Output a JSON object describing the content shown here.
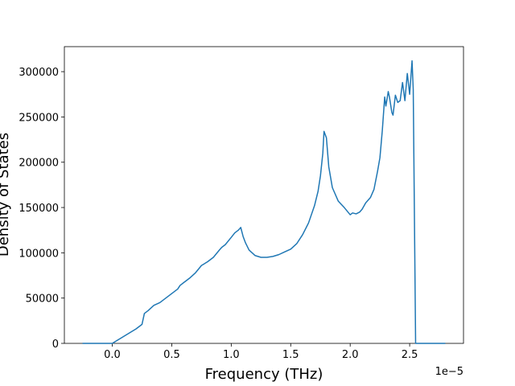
{
  "chart_data": {
    "type": "line",
    "xlabel": "Frequency (THz)",
    "ylabel": "Density of States",
    "offset_text": "1e−5",
    "x": [
      -0.25,
      0.0,
      0.1,
      0.2,
      0.25,
      0.27,
      0.3,
      0.35,
      0.4,
      0.45,
      0.5,
      0.55,
      0.57,
      0.6,
      0.65,
      0.7,
      0.75,
      0.8,
      0.85,
      0.9,
      0.92,
      0.95,
      1.0,
      1.03,
      1.06,
      1.08,
      1.1,
      1.12,
      1.15,
      1.2,
      1.25,
      1.3,
      1.35,
      1.4,
      1.45,
      1.5,
      1.55,
      1.6,
      1.65,
      1.7,
      1.73,
      1.75,
      1.77,
      1.78,
      1.8,
      1.82,
      1.85,
      1.9,
      1.95,
      2.0,
      2.02,
      2.05,
      2.08,
      2.1,
      2.13,
      2.17,
      2.2,
      2.23,
      2.25,
      2.27,
      2.29,
      2.3,
      2.32,
      2.33,
      2.35,
      2.36,
      2.38,
      2.4,
      2.42,
      2.44,
      2.46,
      2.48,
      2.5,
      2.52,
      2.53,
      2.55,
      2.8
    ],
    "series": [
      {
        "color": "#1f77b4",
        "values": [
          0,
          0,
          8000,
          16000,
          21000,
          33000,
          36000,
          42000,
          45000,
          50000,
          55000,
          60000,
          64000,
          67000,
          72000,
          78000,
          86000,
          90000,
          95000,
          103000,
          106000,
          109000,
          117000,
          122000,
          125000,
          128000,
          118000,
          111000,
          103000,
          97000,
          95000,
          95000,
          96000,
          98000,
          101000,
          104000,
          110000,
          120000,
          133000,
          152000,
          168000,
          185000,
          210000,
          234000,
          227000,
          195000,
          172000,
          157000,
          150000,
          142000,
          144000,
          143000,
          145000,
          148000,
          155000,
          161000,
          170000,
          190000,
          205000,
          235000,
          272000,
          262000,
          278000,
          272000,
          255000,
          252000,
          274000,
          266000,
          268000,
          288000,
          268000,
          298000,
          275000,
          312000,
          280000,
          0,
          0
        ]
      }
    ],
    "xlim": [
      -0.4025,
      2.9525
    ],
    "xticks": [
      {
        "value": 0,
        "label": "0.0"
      },
      0.5,
      {
        "value": 1,
        "label": "1.0"
      },
      1.5,
      {
        "value": 2,
        "label": "2.0"
      },
      2.5
    ],
    "ylim": [
      0,
      327600
    ],
    "yticks": [
      0,
      50000,
      100000,
      150000,
      200000,
      250000,
      300000
    ]
  }
}
